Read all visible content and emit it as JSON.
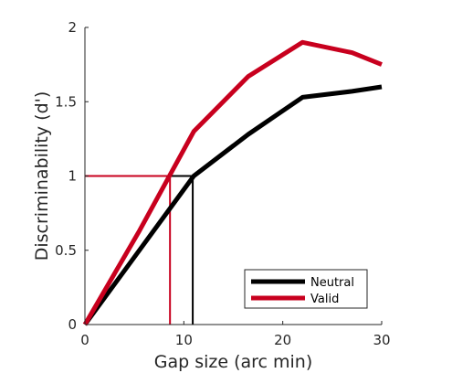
{
  "chart_data": {
    "type": "line",
    "xlabel": "Gap size (arc min)",
    "ylabel": "Discriminability (d')",
    "xlim": [
      0,
      30
    ],
    "ylim": [
      0,
      2
    ],
    "x_ticks": [
      0,
      10,
      20,
      30
    ],
    "y_ticks": [
      0,
      0.5,
      1,
      1.5,
      2
    ],
    "x_tick_labels": [
      "0",
      "10",
      "20",
      "30"
    ],
    "y_tick_labels": [
      "0",
      "0.5",
      "1",
      "1.5",
      "2"
    ],
    "grid": false,
    "legend_position": "bottom-right",
    "series": [
      {
        "name": "Neutral",
        "color": "#000000",
        "x": [
          0,
          5.5,
          11,
          16.5,
          22,
          27,
          30
        ],
        "y": [
          0,
          0.5,
          1.0,
          1.28,
          1.53,
          1.57,
          1.6
        ]
      },
      {
        "name": "Valid",
        "color": "#c8001e",
        "x": [
          0,
          5.5,
          11,
          16.5,
          22,
          27,
          30
        ],
        "y": [
          0,
          0.63,
          1.3,
          1.67,
          1.9,
          1.83,
          1.75
        ]
      }
    ],
    "reference_lines": [
      {
        "series": "Neutral",
        "color": "#000000",
        "threshold_y": 1.0,
        "threshold_x": 10.9
      },
      {
        "series": "Valid",
        "color": "#c8001e",
        "threshold_y": 1.0,
        "threshold_x": 8.6
      }
    ]
  }
}
